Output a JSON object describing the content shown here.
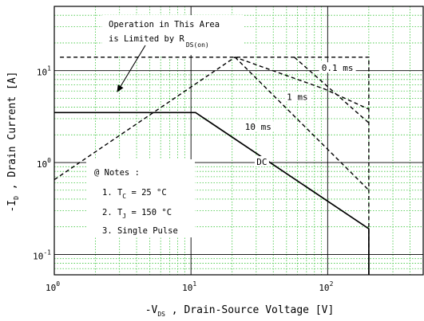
{
  "chart_data": {
    "type": "line",
    "title": "",
    "scale": {
      "x": "log",
      "y": "log"
    },
    "xlim": [
      1,
      500
    ],
    "ylim": [
      0.06,
      50
    ],
    "grid": true,
    "xlabel": {
      "prefix": "-V",
      "sub": "DS",
      "suffix": " , Drain-Source Voltage  [V]"
    },
    "ylabel": {
      "prefix": "-I",
      "sub": "D",
      "suffix": " , Drain Current  [A]"
    },
    "x_ticks": [
      {
        "value": 1,
        "base": "10",
        "exp": "0"
      },
      {
        "value": 10,
        "base": "10",
        "exp": "1"
      },
      {
        "value": 100,
        "base": "10",
        "exp": "2"
      }
    ],
    "y_ticks": [
      {
        "value": 0.1,
        "base": "10",
        "exp": "-1"
      },
      {
        "value": 1,
        "base": "10",
        "exp": "0"
      },
      {
        "value": 10,
        "base": "10",
        "exp": "1"
      }
    ],
    "series": [
      {
        "name": "DC",
        "style": "solid",
        "points": [
          [
            1,
            3.5
          ],
          [
            10.8,
            3.5
          ],
          [
            200,
            0.19
          ],
          [
            200,
            0.06
          ]
        ]
      },
      {
        "name": "10 ms",
        "style": "dashed",
        "points": [
          [
            21,
            14
          ],
          [
            200,
            0.5
          ]
        ]
      },
      {
        "name": "1 ms",
        "style": "dashed",
        "points": [
          [
            57,
            14
          ],
          [
            200,
            2.7
          ]
        ]
      },
      {
        "name": "0.1 ms",
        "style": "dashed",
        "points": [
          [
            1.1,
            14
          ],
          [
            200,
            14
          ],
          [
            200,
            0.06
          ]
        ]
      },
      {
        "name": "R_DS(on) limit",
        "style": "dashed",
        "points": [
          [
            1,
            0.65
          ],
          [
            21,
            14
          ],
          [
            95,
            6.3
          ],
          [
            200,
            3.8
          ]
        ]
      }
    ],
    "annotations": {
      "limit_line1": "Operation in This Area",
      "limit_line2": "is Limited by R",
      "limit_sub": "DS(on)",
      "notes_header": "@ Notes :",
      "note1_prefix": "1. T",
      "note1_sub": "C",
      "note1_suffix": " = 25 °C",
      "note2_prefix": "2. T",
      "note2_sub": "J",
      "note2_suffix": " = 150 °C",
      "note3": "3. Single Pulse"
    },
    "curve_labels": [
      {
        "text": "0.1 ms",
        "x": 118,
        "y": 10.5
      },
      {
        "text": "1 ms",
        "x": 60,
        "y": 5.1
      },
      {
        "text": "10 ms",
        "x": 31,
        "y": 2.4
      },
      {
        "text": "DC",
        "x": 33,
        "y": 1.0
      }
    ],
    "colors": {
      "grid_major": "#000000",
      "grid_minor": "#3cc43c",
      "line": "#000000"
    }
  }
}
